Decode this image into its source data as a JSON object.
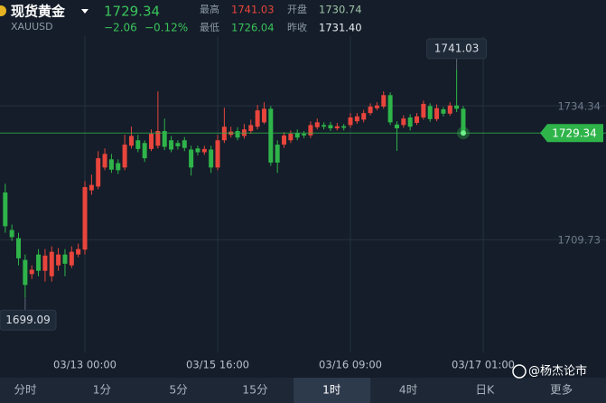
{
  "header": {
    "name": "现货黄金",
    "symbol": "XAUUSD",
    "price": "1729.34",
    "change": "−2.06",
    "change_pct": "−0.12%",
    "stats": [
      {
        "label": "最高",
        "value": "1741.03"
      },
      {
        "label": "开盘",
        "value": "1730.74"
      },
      {
        "label": "最低",
        "value": "1726.04"
      },
      {
        "label": "昨收",
        "value": "1731.40"
      }
    ]
  },
  "chart_data": {
    "type": "candlestick",
    "up_color": "#e8453c",
    "down_color": "#2fb44a",
    "grid": true,
    "ylim": [
      1689,
      1747.15
    ],
    "yticks": [
      1734.34,
      1709.73
    ],
    "xlim": [
      -0.79,
      90.5
    ],
    "xticks": [
      {
        "value": 12,
        "label": "03/13 00:00"
      },
      {
        "value": 32,
        "label": "03/15 16:00"
      },
      {
        "value": 52,
        "label": "03/16 09:00"
      },
      {
        "value": 72,
        "label": "03/17 01:00"
      }
    ],
    "open": [
      1718.4,
      1711.5,
      1710,
      1706,
      1703.4,
      1707,
      1704,
      1703,
      1705,
      1707,
      1705,
      1707,
      1707.9,
      1718.8,
      1719.5,
      1723,
      1724.5,
      1723.8,
      1723,
      1727,
      1728,
      1727.5,
      1726.4,
      1727,
      1729.7,
      1728,
      1727.5,
      1728,
      1726.3,
      1726.5,
      1725.8,
      1726.3,
      1723,
      1728,
      1729,
      1729.7,
      1728.8,
      1729.7,
      1730.5,
      1731.3,
      1733.8,
      1727.2,
      1727.2,
      1728,
      1729.3,
      1729.2,
      1728.9,
      1730.4,
      1730.8,
      1730.8,
      1730.2,
      1730.6,
      1730.8,
      1731.5,
      1731.8,
      1733,
      1733.9,
      1734.2,
      1736.3,
      1730.9,
      1730.8,
      1732.2,
      1731.2,
      1732.2,
      1734.3,
      1731.9,
      1733.7,
      1732.9,
      1734.4,
      1733.8
    ],
    "close": [
      1712.2,
      1710.2,
      1706.3,
      1701.4,
      1704.2,
      1704,
      1706.8,
      1707.5,
      1707,
      1705.3,
      1707.5,
      1708,
      1719.4,
      1719.8,
      1724.7,
      1725.5,
      1722.6,
      1722.5,
      1727.2,
      1728.8,
      1726.4,
      1724.7,
      1729.2,
      1729.7,
      1726.8,
      1726.3,
      1726.9,
      1726.6,
      1723,
      1725.8,
      1726.4,
      1723,
      1728,
      1730.5,
      1729.6,
      1728.5,
      1730,
      1730.8,
      1733.5,
      1733.8,
      1723.9,
      1723.9,
      1728.9,
      1729.2,
      1728.5,
      1728.9,
      1730.8,
      1731.3,
      1730.5,
      1730.2,
      1730.6,
      1730.3,
      1732.2,
      1732.4,
      1733,
      1734.2,
      1734.4,
      1736.3,
      1731.3,
      1730.2,
      1732,
      1730.5,
      1732.4,
      1734.7,
      1731.9,
      1733.9,
      1732.9,
      1734.4,
      1733.8,
      1729.34
    ],
    "high": [
      1720,
      1712.5,
      1711,
      1707,
      1705,
      1708,
      1708,
      1708.5,
      1708.2,
      1708,
      1708.5,
      1709,
      1720.5,
      1721.7,
      1726,
      1726.5,
      1725.5,
      1724.5,
      1729,
      1730.5,
      1729,
      1728,
      1730,
      1737,
      1732,
      1728.8,
      1728,
      1728.6,
      1727,
      1727,
      1727,
      1727,
      1729,
      1734,
      1730.5,
      1730.4,
      1731,
      1731.8,
      1734.5,
      1735,
      1734.3,
      1728,
      1729.5,
      1729.8,
      1730,
      1729.7,
      1731.5,
      1732,
      1731.3,
      1731.4,
      1731.2,
      1731,
      1733,
      1733,
      1733.6,
      1734.8,
      1735,
      1737,
      1736.8,
      1731.5,
      1732.6,
      1732.8,
      1733,
      1735.3,
      1734.8,
      1734.6,
      1734.1,
      1735,
      1741.03,
      1734.3
    ],
    "low": [
      1711,
      1709.5,
      1705,
      1699.09,
      1702.5,
      1703,
      1702,
      1702,
      1704,
      1703,
      1704.5,
      1706.5,
      1707,
      1718,
      1719,
      1722.5,
      1722,
      1721.8,
      1722.5,
      1726.5,
      1725.8,
      1724,
      1726,
      1726.5,
      1726.2,
      1725.8,
      1726.3,
      1726,
      1721.5,
      1725.2,
      1725.3,
      1722,
      1722.5,
      1727.5,
      1728.5,
      1728,
      1728.3,
      1729.2,
      1730,
      1731,
      1723.3,
      1722,
      1726.6,
      1727.5,
      1728,
      1728.4,
      1728.4,
      1730,
      1730,
      1729.7,
      1729.8,
      1729.8,
      1730.3,
      1731,
      1731.3,
      1732.6,
      1733.5,
      1733.8,
      1730.8,
      1726.04,
      1730.3,
      1729.8,
      1730.8,
      1731.8,
      1731.4,
      1731.5,
      1732.4,
      1732.5,
      1733.2,
      1729
    ]
  },
  "tabs": [
    "分时",
    "1分",
    "5分",
    "15分",
    "1时",
    "4时",
    "日K",
    "更多"
  ],
  "selected_tab": 4,
  "watermark": "@杨杰论市"
}
